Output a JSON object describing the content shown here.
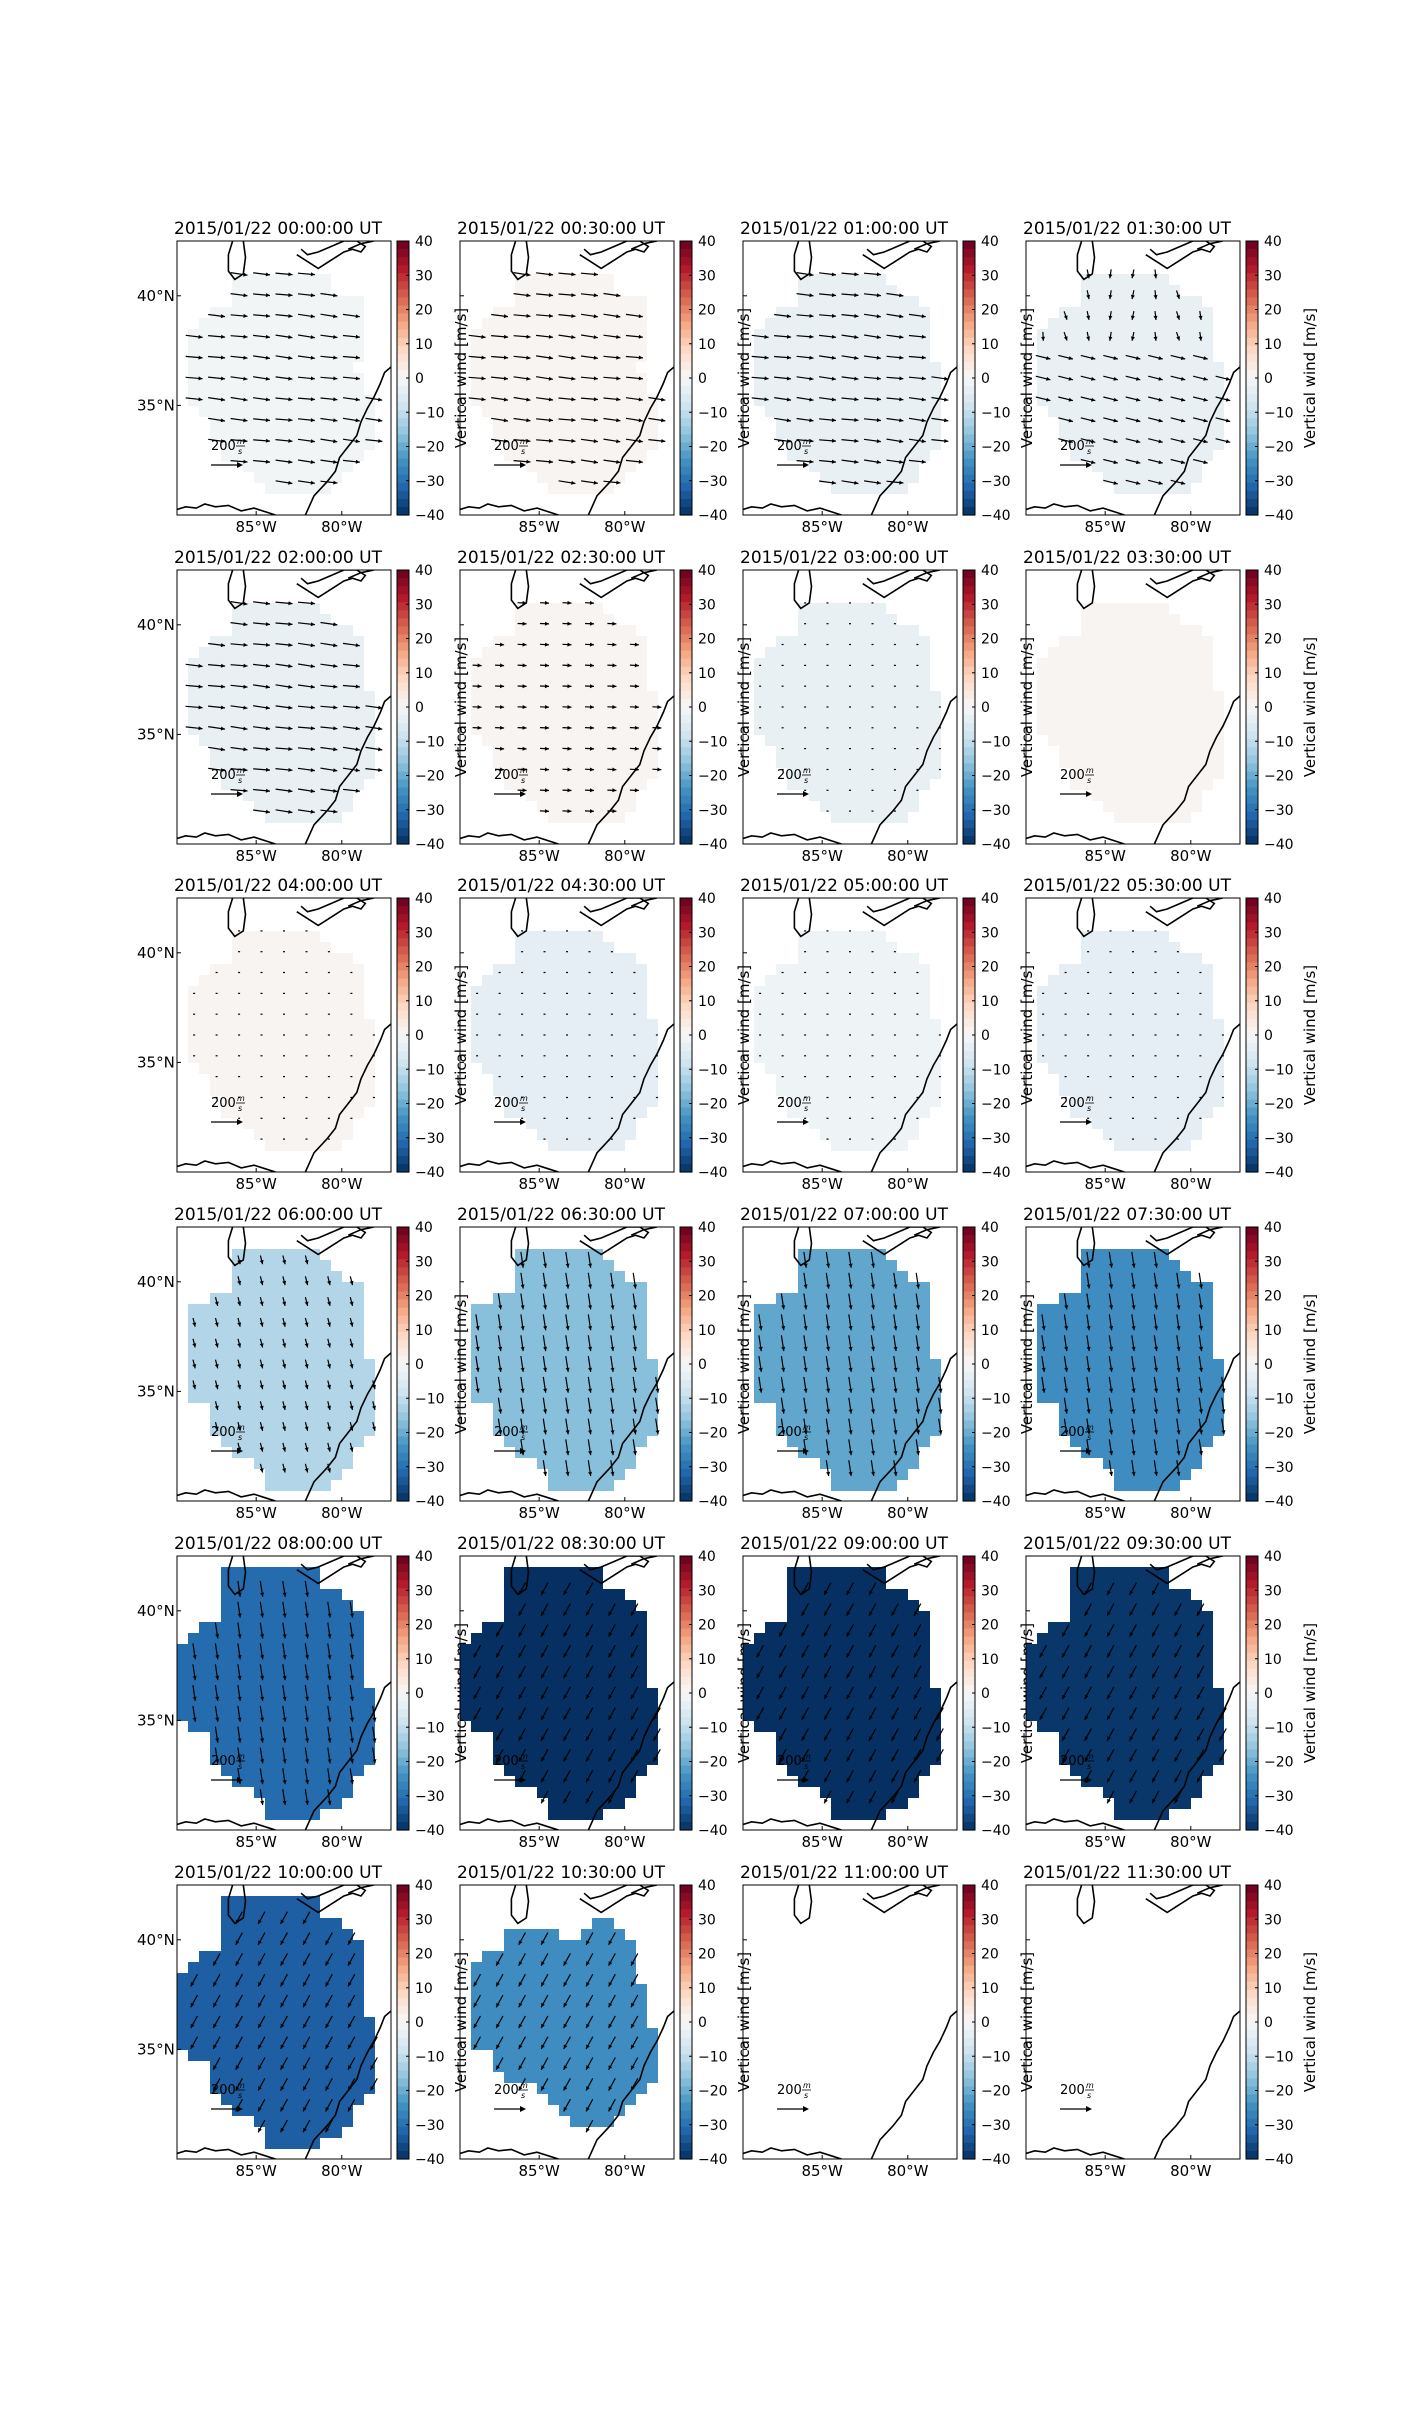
{
  "figure": {
    "colorbar": {
      "label": "Vertical wind [m/s]",
      "ticks": [
        "40",
        "30",
        "20",
        "10",
        "0",
        "−10",
        "−20",
        "−30",
        "−40"
      ],
      "range": [
        -40,
        40
      ],
      "cmap": "RdBu_r",
      "colors": [
        "#053061",
        "#2166ac",
        "#4393c3",
        "#92c5de",
        "#d1e5f0",
        "#f7f7f7",
        "#fddbc7",
        "#f4a582",
        "#d6604d",
        "#b2182b",
        "#67001f"
      ]
    },
    "axes": {
      "x_ticks": [
        "85°W",
        "80°W"
      ],
      "y_ticks": [
        "40°N",
        "35°N"
      ]
    },
    "reference_arrow": {
      "value": "200",
      "unit_num": "m",
      "unit_den": "s"
    },
    "panels": [
      {
        "title": "2015/01/22 00:00:00 UT",
        "wind": -1,
        "shape": "a",
        "arrows": "east"
      },
      {
        "title": "2015/01/22 00:30:00 UT",
        "wind": 1,
        "shape": "a",
        "arrows": "east"
      },
      {
        "title": "2015/01/22 01:00:00 UT",
        "wind": -3,
        "shape": "b",
        "arrows": "east"
      },
      {
        "title": "2015/01/22 01:30:00 UT",
        "wind": -3,
        "shape": "b",
        "arrows": "mixed"
      },
      {
        "title": "2015/01/22 02:00:00 UT",
        "wind": -3,
        "shape": "b",
        "arrows": "east"
      },
      {
        "title": "2015/01/22 02:30:00 UT",
        "wind": 1,
        "shape": "b",
        "arrows": "east_small"
      },
      {
        "title": "2015/01/22 03:00:00 UT",
        "wind": -3,
        "shape": "b",
        "arrows": "dots"
      },
      {
        "title": "2015/01/22 03:30:00 UT",
        "wind": 1,
        "shape": "b",
        "arrows": "none"
      },
      {
        "title": "2015/01/22 04:00:00 UT",
        "wind": 1,
        "shape": "b",
        "arrows": "dots"
      },
      {
        "title": "2015/01/22 04:30:00 UT",
        "wind": -4,
        "shape": "b",
        "arrows": "dots"
      },
      {
        "title": "2015/01/22 05:00:00 UT",
        "wind": -2,
        "shape": "b",
        "arrows": "dots"
      },
      {
        "title": "2015/01/22 05:30:00 UT",
        "wind": -4,
        "shape": "b",
        "arrows": "dots"
      },
      {
        "title": "2015/01/22 06:00:00 UT",
        "wind": -12,
        "shape": "c",
        "arrows": "south_small"
      },
      {
        "title": "2015/01/22 06:30:00 UT",
        "wind": -17,
        "shape": "c",
        "arrows": "south"
      },
      {
        "title": "2015/01/22 07:00:00 UT",
        "wind": -21,
        "shape": "c",
        "arrows": "south"
      },
      {
        "title": "2015/01/22 07:30:00 UT",
        "wind": -25,
        "shape": "c",
        "arrows": "south"
      },
      {
        "title": "2015/01/22 08:00:00 UT",
        "wind": -31,
        "shape": "d",
        "arrows": "south"
      },
      {
        "title": "2015/01/22 08:30:00 UT",
        "wind": -40,
        "shape": "d",
        "arrows": "southwest"
      },
      {
        "title": "2015/01/22 09:00:00 UT",
        "wind": -40,
        "shape": "d",
        "arrows": "southwest"
      },
      {
        "title": "2015/01/22 09:30:00 UT",
        "wind": -39,
        "shape": "d",
        "arrows": "southwest"
      },
      {
        "title": "2015/01/22 10:00:00 UT",
        "wind": -33,
        "shape": "d",
        "arrows": "southwest"
      },
      {
        "title": "2015/01/22 10:30:00 UT",
        "wind": -25,
        "shape": "e",
        "arrows": "southwest"
      },
      {
        "title": "2015/01/22 11:00:00 UT",
        "wind": null,
        "shape": "none",
        "arrows": "none"
      },
      {
        "title": "2015/01/22 11:30:00 UT",
        "wind": null,
        "shape": "none",
        "arrows": "none"
      }
    ]
  }
}
